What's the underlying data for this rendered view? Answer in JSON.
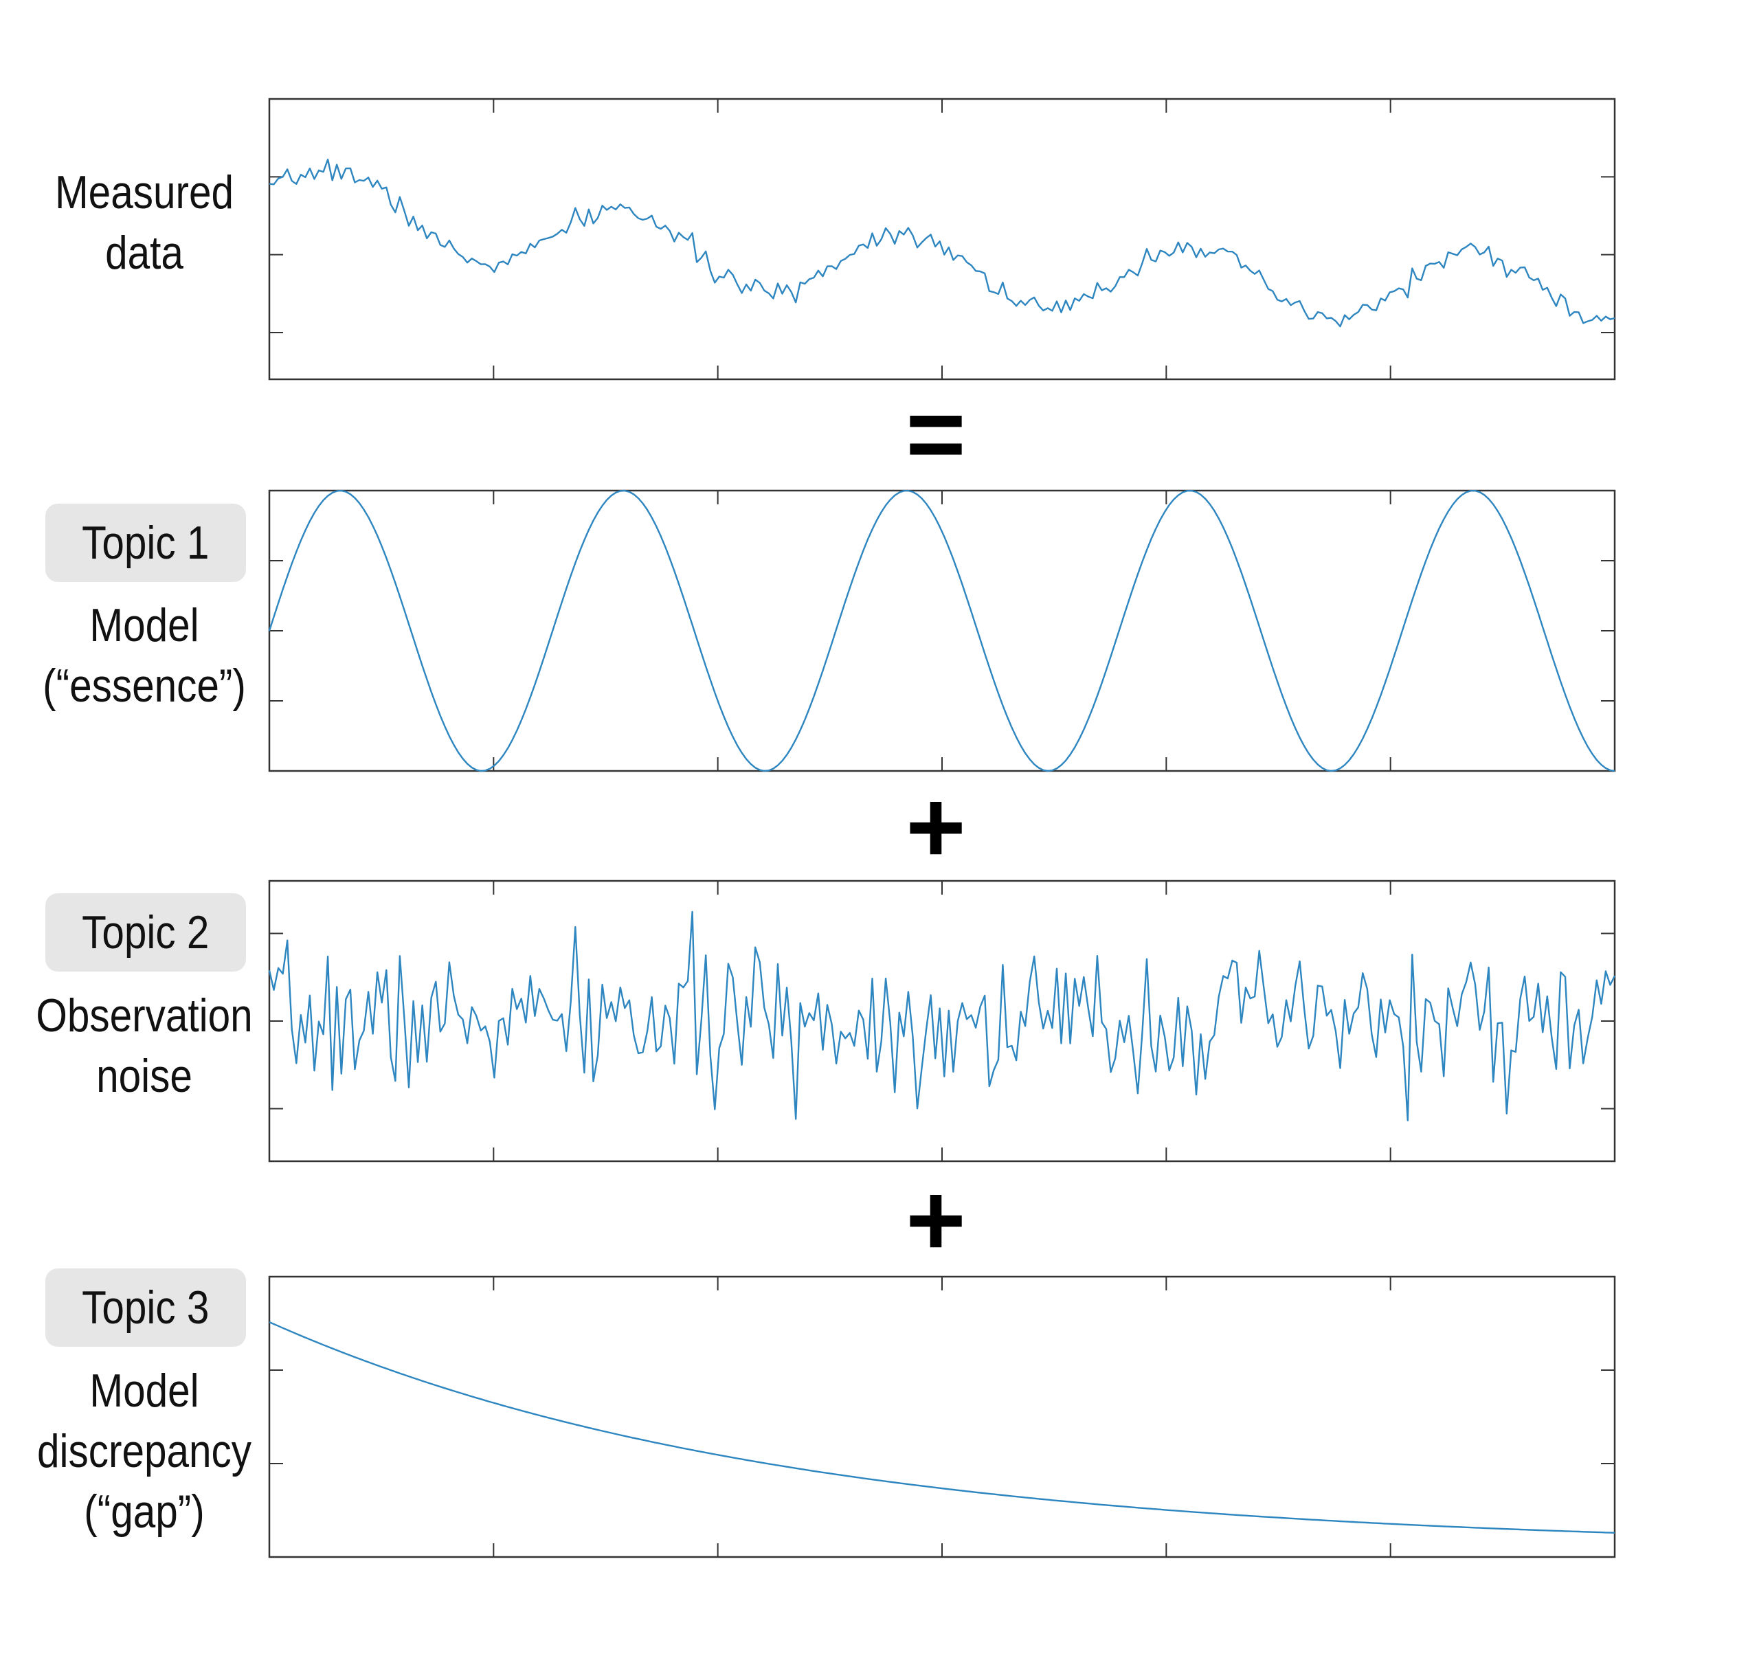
{
  "colors": {
    "line": "#2e86c1",
    "frame": "#333333",
    "pill": "#e6e6e6"
  },
  "operators": {
    "equals": "=",
    "plus_1": "+",
    "plus_2": "+"
  },
  "panels": [
    {
      "topic": "",
      "label_lines": [
        "Measured",
        "data"
      ]
    },
    {
      "topic": "Topic 1",
      "label_lines": [
        "Model",
        "(“essence”)"
      ]
    },
    {
      "topic": "Topic 2",
      "label_lines": [
        "Observation",
        "noise"
      ]
    },
    {
      "topic": "Topic 3",
      "label_lines": [
        "Model",
        "discrepancy",
        "(“gap”)"
      ]
    }
  ],
  "chart_data": [
    {
      "type": "line",
      "name": "measured",
      "xlim": [
        0,
        6
      ],
      "ylim": [
        -1.9,
        1.7
      ],
      "x_ticks": [
        1,
        2,
        3,
        4,
        5
      ],
      "y_ticks": [
        -1.3,
        -0.3,
        0.7
      ],
      "formula": "sine + noise + decay",
      "n_points": 300
    },
    {
      "type": "line",
      "name": "topic1",
      "xlim": [
        0,
        6
      ],
      "ylim": [
        -1,
        1
      ],
      "x_ticks": [
        1,
        2,
        3,
        4,
        5
      ],
      "y_ticks": [
        -0.5,
        0,
        0.5
      ],
      "amplitude": 1,
      "cycles": 4.75,
      "phase_deg": 0
    },
    {
      "type": "line",
      "name": "topic2",
      "xlim": [
        0,
        6
      ],
      "ylim": [
        -0.8,
        0.8
      ],
      "x_ticks": [
        1,
        2,
        3,
        4,
        5
      ],
      "y_ticks": [
        -0.5,
        0,
        0.5
      ],
      "noise_sd": 0.2,
      "n_points": 300,
      "seed": 7
    },
    {
      "type": "line",
      "name": "topic3",
      "xlim": [
        0,
        6
      ],
      "ylim": [
        0,
        1.05
      ],
      "x_ticks": [
        1,
        2,
        3,
        4,
        5
      ],
      "y_ticks": [
        0.35,
        0.7
      ],
      "start": 0.88,
      "decay_rate": 0.44,
      "floor": 0.03
    }
  ]
}
